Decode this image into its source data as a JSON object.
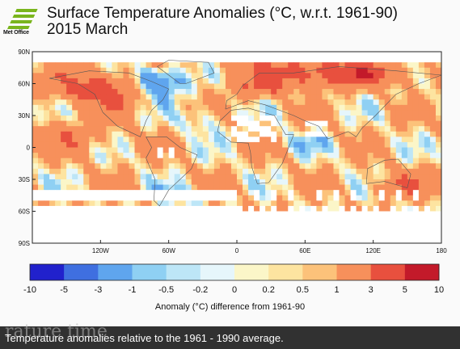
{
  "header": {
    "logo_text": "Met Office",
    "title": "Surface Temperature Anomalies (°C, w.r.t. 1961-90)",
    "subtitle": "2015 March"
  },
  "chart_data": {
    "type": "heatmap",
    "title": "Surface Temperature Anomalies (°C, w.r.t. 1961-90)",
    "subtitle": "2015 March",
    "lat_ticks": [
      "90N",
      "60N",
      "30N",
      "0",
      "30S",
      "60S",
      "90S"
    ],
    "lon_ticks": [
      "120W",
      "60W",
      "0",
      "60E",
      "120E",
      "180"
    ],
    "colorbar": {
      "boundaries": [
        "-10",
        "-5",
        "-3",
        "-1",
        "-0.5",
        "-0.2",
        "0",
        "0.2",
        "0.5",
        "1",
        "3",
        "5",
        "10"
      ],
      "colors": [
        "#2121cc",
        "#3f6fe0",
        "#5fa5ee",
        "#8fd0f3",
        "#bde6f7",
        "#e6f6fb",
        "#fbf6c8",
        "#fde4a0",
        "#fcc27a",
        "#f7905b",
        "#e8503e",
        "#c31a2a"
      ],
      "label": "Anomaly (°C) difference from 1961-90"
    },
    "missing_color": "#ffffff"
  },
  "caption": {
    "ghost_text": "rature time",
    "text": "Temperature anomalies relative to the 1961 - 1990 average."
  }
}
